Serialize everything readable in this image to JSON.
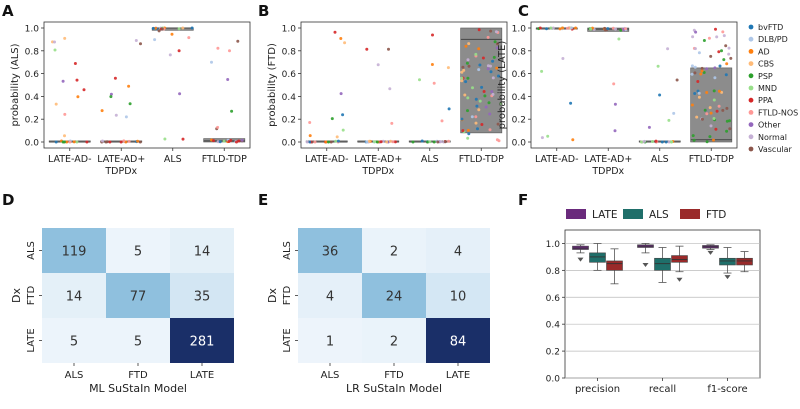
{
  "panels": {
    "A": {
      "letter": "A",
      "ylabel": "probability (ALS)",
      "categories": [
        "LATE-AD-",
        "LATE-AD+",
        "ALS",
        "FTLD-TDP"
      ],
      "subtitle": "TDPDx",
      "yticks": [
        "0.0",
        "0.2",
        "0.4",
        "0.6",
        "0.8",
        "1.0"
      ],
      "boxes": [
        {
          "q1": 0.0,
          "med": 0.0,
          "q3": 0.01
        },
        {
          "q1": 0.0,
          "med": 0.0,
          "q3": 0.01
        },
        {
          "q1": 0.98,
          "med": 1.0,
          "q3": 1.0
        },
        {
          "q1": 0.0,
          "med": 0.01,
          "q3": 0.03
        }
      ]
    },
    "B": {
      "letter": "B",
      "ylabel": "probability (FTD)",
      "categories": [
        "LATE-AD-",
        "LATE-AD+",
        "ALS",
        "FTLD-TDP"
      ],
      "subtitle": "TDPDx",
      "yticks": [
        "0.0",
        "0.2",
        "0.4",
        "0.6",
        "0.8",
        "1.0"
      ],
      "boxes": [
        {
          "q1": 0.0,
          "med": 0.0,
          "q3": 0.01
        },
        {
          "q1": 0.0,
          "med": 0.0,
          "q3": 0.01
        },
        {
          "q1": 0.0,
          "med": 0.0,
          "q3": 0.01
        },
        {
          "q1": 0.08,
          "med": 0.9,
          "q3": 1.0
        }
      ]
    },
    "C": {
      "letter": "C",
      "ylabel": "probability (LATE)",
      "categories": [
        "LATE-AD-",
        "LATE-AD+",
        "ALS",
        "FTLD-TDP"
      ],
      "subtitle": "TDPDx",
      "yticks": [
        "0.0",
        "0.2",
        "0.4",
        "0.6",
        "0.8",
        "1.0"
      ],
      "boxes": [
        {
          "q1": 0.99,
          "med": 1.0,
          "q3": 1.0
        },
        {
          "q1": 0.97,
          "med": 0.99,
          "q3": 1.0
        },
        {
          "q1": 0.0,
          "med": 0.0,
          "q3": 0.01
        },
        {
          "q1": 0.0,
          "med": 0.02,
          "q3": 0.65
        }
      ]
    },
    "D": {
      "letter": "D",
      "rows": [
        "ALS",
        "FTD",
        "LATE"
      ],
      "cols": [
        "ALS",
        "FTD",
        "LATE"
      ],
      "ylabel": "Dx",
      "xlabel": "ML SuStaIn Model",
      "matrix": [
        [
          119,
          5,
          14
        ],
        [
          14,
          77,
          35
        ],
        [
          5,
          5,
          281
        ]
      ]
    },
    "E": {
      "letter": "E",
      "rows": [
        "ALS",
        "FTD",
        "LATE"
      ],
      "cols": [
        "ALS",
        "FTD",
        "LATE"
      ],
      "ylabel": "Dx",
      "xlabel": "LR SuStaIn Model",
      "matrix": [
        [
          36,
          2,
          4
        ],
        [
          4,
          24,
          10
        ],
        [
          1,
          2,
          84
        ]
      ]
    },
    "F": {
      "letter": "F",
      "categories": [
        "precision",
        "recall",
        "f1-score"
      ],
      "yticks": [
        "0.0",
        "0.2",
        "0.4",
        "0.6",
        "0.8",
        "1.0"
      ],
      "legend": [
        "LATE",
        "ALS",
        "FTD"
      ]
    }
  },
  "legend": {
    "entries": [
      "bvFTD",
      "DLB/PD",
      "AD",
      "CBS",
      "PSP",
      "MND",
      "PPA",
      "FTLD-NOS",
      "Other",
      "Normal",
      "Vascular"
    ],
    "colors": [
      "#1f77b4",
      "#aec7e8",
      "#ff7f0e",
      "#ffbb78",
      "#2ca02c",
      "#98df8a",
      "#d62728",
      "#ff9896",
      "#9467bd",
      "#c5b0d5",
      "#8c564b"
    ]
  },
  "colors": {
    "LATE": "#6a2a7c",
    "ALS": "#1f6f6a",
    "FTD": "#9a2a2a",
    "box_gray": "#8c8c8c"
  },
  "chart_data": [
    {
      "type": "box",
      "title": "A",
      "ylabel": "probability (ALS)",
      "xlabel": "TDPDx",
      "categories": [
        "LATE-AD-",
        "LATE-AD+",
        "ALS",
        "FTLD-TDP"
      ],
      "ylim": [
        0,
        1
      ],
      "medians": [
        0.0,
        0.0,
        1.0,
        0.01
      ],
      "q1": [
        0.0,
        0.0,
        0.98,
        0.0
      ],
      "q3": [
        0.01,
        0.01,
        1.0,
        0.03
      ]
    },
    {
      "type": "box",
      "title": "B",
      "ylabel": "probability (FTD)",
      "xlabel": "TDPDx",
      "categories": [
        "LATE-AD-",
        "LATE-AD+",
        "ALS",
        "FTLD-TDP"
      ],
      "ylim": [
        0,
        1
      ],
      "medians": [
        0.0,
        0.0,
        0.0,
        0.9
      ],
      "q1": [
        0.0,
        0.0,
        0.0,
        0.08
      ],
      "q3": [
        0.01,
        0.01,
        0.01,
        1.0
      ]
    },
    {
      "type": "box",
      "title": "C",
      "ylabel": "probability (LATE)",
      "xlabel": "TDPDx",
      "categories": [
        "LATE-AD-",
        "LATE-AD+",
        "ALS",
        "FTLD-TDP"
      ],
      "ylim": [
        0,
        1
      ],
      "medians": [
        1.0,
        0.99,
        0.0,
        0.02
      ],
      "q1": [
        0.99,
        0.97,
        0.0,
        0.0
      ],
      "q3": [
        1.0,
        1.0,
        0.01,
        0.65
      ]
    },
    {
      "type": "heatmap",
      "title": "D",
      "xlabel": "ML SuStaIn Model",
      "ylabel": "Dx",
      "rows": [
        "ALS",
        "FTD",
        "LATE"
      ],
      "cols": [
        "ALS",
        "FTD",
        "LATE"
      ],
      "values": [
        [
          119,
          5,
          14
        ],
        [
          14,
          77,
          35
        ],
        [
          5,
          5,
          281
        ]
      ]
    },
    {
      "type": "heatmap",
      "title": "E",
      "xlabel": "LR SuStaIn Model",
      "ylabel": "Dx",
      "rows": [
        "ALS",
        "FTD",
        "LATE"
      ],
      "cols": [
        "ALS",
        "FTD",
        "LATE"
      ],
      "values": [
        [
          36,
          2,
          4
        ],
        [
          4,
          24,
          10
        ],
        [
          1,
          2,
          84
        ]
      ]
    },
    {
      "type": "box",
      "title": "F",
      "categories": [
        "precision",
        "recall",
        "f1-score"
      ],
      "ylim": [
        0,
        1.1
      ],
      "series": [
        {
          "name": "LATE",
          "q1": [
            0.955,
            0.97,
            0.965
          ],
          "median": [
            0.965,
            0.98,
            0.975
          ],
          "q3": [
            0.98,
            0.99,
            0.985
          ],
          "whisker_low": [
            0.93,
            0.93,
            0.955
          ],
          "whisker_high": [
            0.99,
            1.0,
            0.99
          ],
          "outlier": [
            0.88,
            0.84,
            0.93
          ]
        },
        {
          "name": "ALS",
          "q1": [
            0.86,
            0.8,
            0.84
          ],
          "median": [
            0.9,
            0.85,
            0.87
          ],
          "q3": [
            0.93,
            0.89,
            0.89
          ],
          "whisker_low": [
            0.8,
            0.71,
            0.78
          ],
          "whisker_high": [
            1.0,
            0.97,
            0.97
          ],
          "outlier": [
            null,
            null,
            0.75
          ]
        },
        {
          "name": "FTD",
          "q1": [
            0.8,
            0.86,
            0.84
          ],
          "median": [
            0.85,
            0.88,
            0.87
          ],
          "q3": [
            0.87,
            0.91,
            0.89
          ],
          "whisker_low": [
            0.7,
            0.79,
            0.79
          ],
          "whisker_high": [
            0.96,
            0.98,
            0.94
          ],
          "outlier": [
            null,
            0.73,
            null
          ]
        }
      ]
    }
  ]
}
